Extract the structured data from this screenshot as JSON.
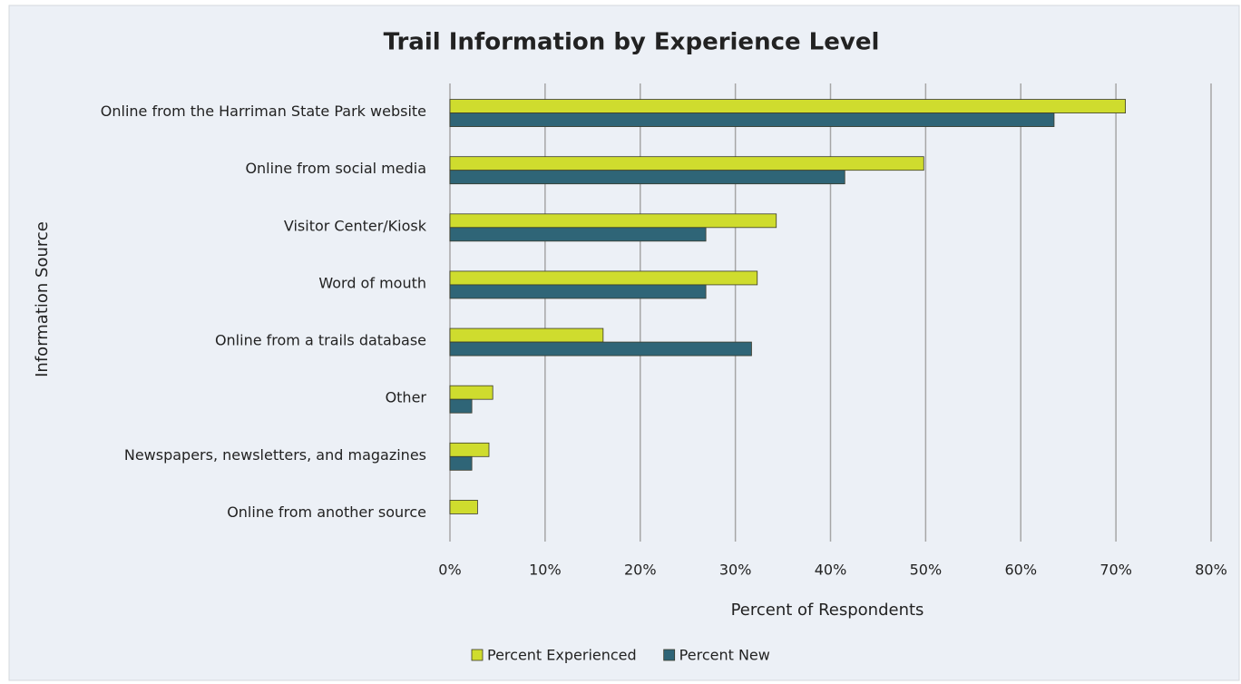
{
  "chart_data": {
    "type": "barh",
    "title": "Trail Information by Experience Level",
    "xlabel": "Percent of Respondents",
    "ylabel": "Information Source",
    "categories": [
      "Online from the Harriman State Park website",
      "Online from social media",
      "Visitor Center/Kiosk",
      "Word of mouth",
      "Online from a trails database",
      "Other",
      "Newspapers, newsletters, and magazines",
      "Online from another source"
    ],
    "series": [
      {
        "name": "Percent Experienced",
        "color": "#cfdc2e",
        "values": [
          71.0,
          49.8,
          34.3,
          32.3,
          16.1,
          4.5,
          4.1,
          2.9
        ]
      },
      {
        "name": "Percent New",
        "color": "#2f6577",
        "values": [
          63.5,
          41.5,
          26.9,
          26.9,
          31.7,
          2.3,
          2.3,
          0
        ]
      }
    ],
    "xlim": [
      0,
      80
    ],
    "xticks": [
      {
        "value": 0,
        "label": "0%"
      },
      {
        "value": 10,
        "label": "10%"
      },
      {
        "value": 20,
        "label": "20%"
      },
      {
        "value": 30,
        "label": "30%"
      },
      {
        "value": 40,
        "label": "40%"
      },
      {
        "value": 50,
        "label": "50%"
      },
      {
        "value": 60,
        "label": "60%"
      },
      {
        "value": 70,
        "label": "70%"
      },
      {
        "value": 80,
        "label": "80%"
      }
    ],
    "grid": true,
    "legend": "bottom"
  }
}
